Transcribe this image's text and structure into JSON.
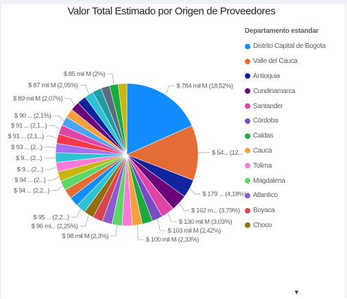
{
  "colors": {
    "title": "#252423",
    "label": "#605e5c"
  },
  "chart_data": {
    "type": "pie",
    "title": "Valor Total Estimado por Origen de Proveedores",
    "legend": {
      "title": "Departamento estandar",
      "placement": "right",
      "entries": [
        {
          "name": "Distrito Capital de Bogota",
          "color": "#118DFF"
        },
        {
          "name": "Valle del Cauca",
          "color": "#E66C37"
        },
        {
          "name": "Antioquia",
          "color": "#12239E"
        },
        {
          "name": "Cundinamarca",
          "color": "#6B007B"
        },
        {
          "name": "Santander",
          "color": "#E044A7"
        },
        {
          "name": "Córdoba",
          "color": "#744EC2"
        },
        {
          "name": "Caldas",
          "color": "#1AAB40"
        },
        {
          "name": "Cauca",
          "color": "#F7A03C"
        },
        {
          "name": "Tolima",
          "color": "#FF7BD7"
        },
        {
          "name": "Magdalena",
          "color": "#5BD667"
        },
        {
          "name": "Atlantico",
          "color": "#8C5BD0"
        },
        {
          "name": "Boyaca",
          "color": "#D64550"
        },
        {
          "name": "Choco",
          "color": "#936D0F"
        }
      ],
      "more_icon": "chevron-down-icon"
    },
    "slices": [
      {
        "label": "$ 784 mil M (18,52%)",
        "pct": 18.52,
        "color": "#118DFF"
      },
      {
        "label": "$ 54... (12...",
        "pct": 12.7,
        "color": "#E66C37"
      },
      {
        "label": "$ 179 ... (4,18%)",
        "pct": 4.18,
        "color": "#12239E"
      },
      {
        "label": "$ 162 m... (3,79%)",
        "pct": 3.79,
        "color": "#6B007B"
      },
      {
        "label": "$ 130 mil M (3,03%)",
        "pct": 3.03,
        "color": "#E044A7"
      },
      {
        "label": "$ 103 mil M (2,42%)",
        "pct": 2.42,
        "color": "#744EC2"
      },
      {
        "label": "",
        "pct": 2.38,
        "color": "#1AAB40"
      },
      {
        "label": "$ 100 mil M (2,33%)",
        "pct": 2.33,
        "color": "#F7A03C"
      },
      {
        "label": "",
        "pct": 2.32,
        "color": "#FF7BD7"
      },
      {
        "label": "$ 98 mil M (2,3%)",
        "pct": 2.3,
        "color": "#5BD667"
      },
      {
        "label": "",
        "pct": 2.28,
        "color": "#8C5BD0"
      },
      {
        "label": "",
        "pct": 2.27,
        "color": "#D64550"
      },
      {
        "label": "$ 96 mi... (2,25%)",
        "pct": 2.25,
        "color": "#936D0F"
      },
      {
        "label": "$ 95 ... (2,2...)",
        "pct": 2.24,
        "color": "#2DC3D4"
      },
      {
        "label": "",
        "pct": 2.23,
        "color": "#118DFF"
      },
      {
        "label": "",
        "pct": 2.22,
        "color": "#E66C37"
      },
      {
        "label": "$ 94 ... (2,2...)",
        "pct": 2.21,
        "color": "#5BD667"
      },
      {
        "label": "$ 94 ... (2...)",
        "pct": 2.2,
        "color": "#C9B510"
      },
      {
        "label": "$ 9... (2...)",
        "pct": 2.19,
        "color": "#FF7BD7"
      },
      {
        "label": "$ 9... (2...)",
        "pct": 2.18,
        "color": "#2DC3D4"
      },
      {
        "label": "$ 93 ... (2...)",
        "pct": 2.17,
        "color": "#A66FF2"
      },
      {
        "label": "$ 91 ... (2,1...)",
        "pct": 2.16,
        "color": "#F5384B"
      },
      {
        "label": "$ 91 ... (2,1...)",
        "pct": 2.15,
        "color": "#E044A7"
      },
      {
        "label": "$ 90 ... (2,1%)",
        "pct": 2.1,
        "color": "#4CA2F5"
      },
      {
        "label": "",
        "pct": 2.09,
        "color": "#F7A03C"
      },
      {
        "label": "$ 89 mil M (2,07%)",
        "pct": 2.07,
        "color": "#6B007B"
      },
      {
        "label": "",
        "pct": 2.06,
        "color": "#12239E"
      },
      {
        "label": "$ 87 mil M (2,05%)",
        "pct": 2.05,
        "color": "#2DC3D4"
      },
      {
        "label": "",
        "pct": 2.03,
        "color": "#1F9AA6"
      },
      {
        "label": "",
        "pct": 2.01,
        "color": "#5A6E80"
      },
      {
        "label": "$ 85 mil M (2%)",
        "pct": 2.0,
        "color": "#1AAB40"
      },
      {
        "label": "",
        "pct": 1.98,
        "color": "#C9B510"
      }
    ]
  }
}
